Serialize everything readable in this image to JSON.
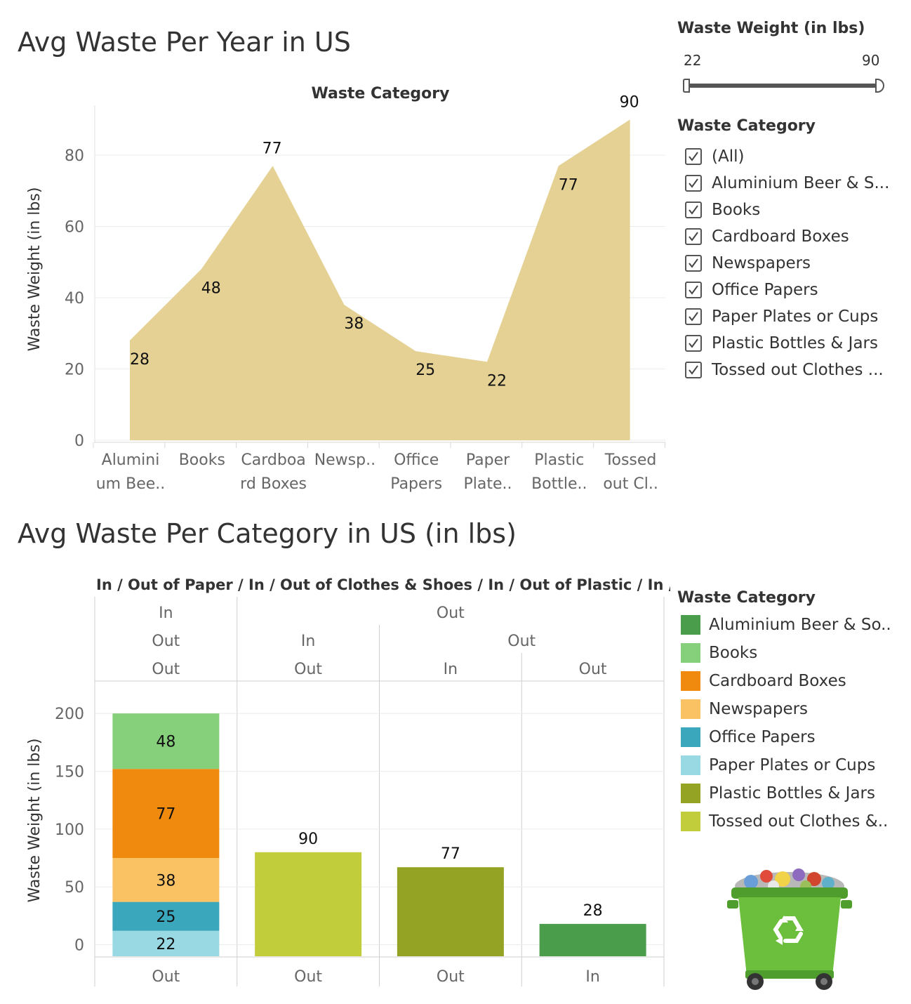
{
  "dashboard": {
    "title_top": "Avg Waste Per Year in US",
    "title_bottom": "Avg Waste Per Category in US (in lbs)"
  },
  "slider": {
    "title": "Waste Weight (in lbs)",
    "min_label": "22",
    "max_label": "90",
    "range": [
      22,
      90
    ],
    "selected": [
      22,
      90
    ]
  },
  "filter": {
    "title": "Waste Category",
    "items": [
      {
        "label": "(All)",
        "checked": true
      },
      {
        "label": "Aluminium Beer & S...",
        "checked": true
      },
      {
        "label": "Books",
        "checked": true
      },
      {
        "label": "Cardboard Boxes",
        "checked": true
      },
      {
        "label": "Newspapers",
        "checked": true
      },
      {
        "label": "Office Papers",
        "checked": true
      },
      {
        "label": "Paper Plates or Cups",
        "checked": true
      },
      {
        "label": "Plastic Bottles & Jars",
        "checked": true
      },
      {
        "label": "Tossed out Clothes ...",
        "checked": true
      }
    ]
  },
  "legend": {
    "title": "Waste Category",
    "items": [
      {
        "label": "Aluminium Beer & So..",
        "color": "#4a9e4b"
      },
      {
        "label": "Books",
        "color": "#86cf7b"
      },
      {
        "label": "Cardboard Boxes",
        "color": "#ef8a0f"
      },
      {
        "label": "Newspapers",
        "color": "#fbc264"
      },
      {
        "label": "Office Papers",
        "color": "#3aa7bc"
      },
      {
        "label": "Paper Plates or Cups",
        "color": "#98d9e4"
      },
      {
        "label": "Plastic Bottles & Jars",
        "color": "#94a323"
      },
      {
        "label": "Tossed out Clothes &..",
        "color": "#c2cd3b"
      }
    ]
  },
  "image": {
    "icon": "recycle-bin-icon",
    "body_color": "#6cbf3d"
  },
  "chart_data": [
    {
      "type": "area",
      "title": "Waste Category",
      "ylabel": "Waste Weight (in lbs)",
      "xlabel": "",
      "color": "#e3cf8d",
      "ylim": [
        0,
        94
      ],
      "yticks": [
        0,
        20,
        40,
        60,
        80
      ],
      "grid": true,
      "categories": [
        [
          "Alumini",
          "um Bee.."
        ],
        [
          "Books"
        ],
        [
          "Cardboa",
          "rd Boxes"
        ],
        [
          "Newsp.."
        ],
        [
          "Office",
          "Papers"
        ],
        [
          "Paper",
          "Plate.."
        ],
        [
          "Plastic",
          "Bottle.."
        ],
        [
          "Tossed",
          "out Cl.."
        ]
      ],
      "values": [
        28,
        48,
        77,
        38,
        25,
        22,
        77,
        90
      ],
      "data_labels": [
        "28",
        "48",
        "77",
        "38",
        "25",
        "22",
        "77",
        "90"
      ]
    },
    {
      "type": "bar",
      "stacked": true,
      "header_title": "In / Out of Paper  /  In / Out of Clothes & Shoes  /  In / Out of Plastic  /  In /..",
      "ylabel": "Waste Weight (in lbs)",
      "ylim": [
        -10,
        225
      ],
      "yticks": [
        0,
        50,
        100,
        150,
        200
      ],
      "header_rows": [
        [
          {
            "label": "In",
            "span": 1
          },
          {
            "label": "Out",
            "span": 3
          }
        ],
        [
          {
            "label": "Out",
            "span": 1
          },
          {
            "label": "In",
            "span": 1
          },
          {
            "label": "Out",
            "span": 2
          }
        ],
        [
          {
            "label": "Out",
            "span": 1
          },
          {
            "label": "Out",
            "span": 1
          },
          {
            "label": "In",
            "span": 1
          },
          {
            "label": "Out",
            "span": 1
          }
        ]
      ],
      "categories": [
        "Out",
        "Out",
        "Out",
        "In"
      ],
      "series": [
        {
          "name": "Paper Plates or Cups",
          "values": [
            22,
            0,
            0,
            0
          ]
        },
        {
          "name": "Office Papers",
          "values": [
            25,
            0,
            0,
            0
          ]
        },
        {
          "name": "Newspapers",
          "values": [
            38,
            0,
            0,
            0
          ]
        },
        {
          "name": "Cardboard Boxes",
          "values": [
            77,
            0,
            0,
            0
          ]
        },
        {
          "name": "Books",
          "values": [
            48,
            0,
            0,
            0
          ]
        },
        {
          "name": "Tossed out Clothes &..",
          "values": [
            0,
            90,
            0,
            0
          ]
        },
        {
          "name": "Plastic Bottles & Jars",
          "values": [
            0,
            0,
            77,
            0
          ]
        },
        {
          "name": "Aluminium Beer & So..",
          "values": [
            0,
            0,
            0,
            28
          ]
        }
      ]
    }
  ]
}
